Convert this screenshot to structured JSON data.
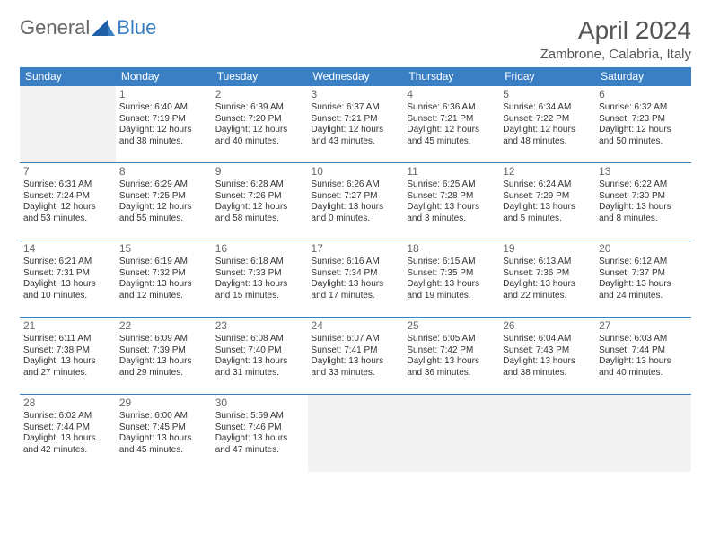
{
  "logo": {
    "text1": "General",
    "text2": "Blue"
  },
  "title": "April 2024",
  "location": "Zambrone, Calabria, Italy",
  "colors": {
    "header_bg": "#3a7fc4",
    "header_text": "#ffffff",
    "border": "#3a7fc4",
    "empty_bg": "#f3f3f3",
    "text": "#333333",
    "title_text": "#555555"
  },
  "weekdays": [
    "Sunday",
    "Monday",
    "Tuesday",
    "Wednesday",
    "Thursday",
    "Friday",
    "Saturday"
  ],
  "weeks": [
    [
      null,
      {
        "n": "1",
        "sr": "6:40 AM",
        "ss": "7:19 PM",
        "dl": "12 hours and 38 minutes."
      },
      {
        "n": "2",
        "sr": "6:39 AM",
        "ss": "7:20 PM",
        "dl": "12 hours and 40 minutes."
      },
      {
        "n": "3",
        "sr": "6:37 AM",
        "ss": "7:21 PM",
        "dl": "12 hours and 43 minutes."
      },
      {
        "n": "4",
        "sr": "6:36 AM",
        "ss": "7:21 PM",
        "dl": "12 hours and 45 minutes."
      },
      {
        "n": "5",
        "sr": "6:34 AM",
        "ss": "7:22 PM",
        "dl": "12 hours and 48 minutes."
      },
      {
        "n": "6",
        "sr": "6:32 AM",
        "ss": "7:23 PM",
        "dl": "12 hours and 50 minutes."
      }
    ],
    [
      {
        "n": "7",
        "sr": "6:31 AM",
        "ss": "7:24 PM",
        "dl": "12 hours and 53 minutes."
      },
      {
        "n": "8",
        "sr": "6:29 AM",
        "ss": "7:25 PM",
        "dl": "12 hours and 55 minutes."
      },
      {
        "n": "9",
        "sr": "6:28 AM",
        "ss": "7:26 PM",
        "dl": "12 hours and 58 minutes."
      },
      {
        "n": "10",
        "sr": "6:26 AM",
        "ss": "7:27 PM",
        "dl": "13 hours and 0 minutes."
      },
      {
        "n": "11",
        "sr": "6:25 AM",
        "ss": "7:28 PM",
        "dl": "13 hours and 3 minutes."
      },
      {
        "n": "12",
        "sr": "6:24 AM",
        "ss": "7:29 PM",
        "dl": "13 hours and 5 minutes."
      },
      {
        "n": "13",
        "sr": "6:22 AM",
        "ss": "7:30 PM",
        "dl": "13 hours and 8 minutes."
      }
    ],
    [
      {
        "n": "14",
        "sr": "6:21 AM",
        "ss": "7:31 PM",
        "dl": "13 hours and 10 minutes."
      },
      {
        "n": "15",
        "sr": "6:19 AM",
        "ss": "7:32 PM",
        "dl": "13 hours and 12 minutes."
      },
      {
        "n": "16",
        "sr": "6:18 AM",
        "ss": "7:33 PM",
        "dl": "13 hours and 15 minutes."
      },
      {
        "n": "17",
        "sr": "6:16 AM",
        "ss": "7:34 PM",
        "dl": "13 hours and 17 minutes."
      },
      {
        "n": "18",
        "sr": "6:15 AM",
        "ss": "7:35 PM",
        "dl": "13 hours and 19 minutes."
      },
      {
        "n": "19",
        "sr": "6:13 AM",
        "ss": "7:36 PM",
        "dl": "13 hours and 22 minutes."
      },
      {
        "n": "20",
        "sr": "6:12 AM",
        "ss": "7:37 PM",
        "dl": "13 hours and 24 minutes."
      }
    ],
    [
      {
        "n": "21",
        "sr": "6:11 AM",
        "ss": "7:38 PM",
        "dl": "13 hours and 27 minutes."
      },
      {
        "n": "22",
        "sr": "6:09 AM",
        "ss": "7:39 PM",
        "dl": "13 hours and 29 minutes."
      },
      {
        "n": "23",
        "sr": "6:08 AM",
        "ss": "7:40 PM",
        "dl": "13 hours and 31 minutes."
      },
      {
        "n": "24",
        "sr": "6:07 AM",
        "ss": "7:41 PM",
        "dl": "13 hours and 33 minutes."
      },
      {
        "n": "25",
        "sr": "6:05 AM",
        "ss": "7:42 PM",
        "dl": "13 hours and 36 minutes."
      },
      {
        "n": "26",
        "sr": "6:04 AM",
        "ss": "7:43 PM",
        "dl": "13 hours and 38 minutes."
      },
      {
        "n": "27",
        "sr": "6:03 AM",
        "ss": "7:44 PM",
        "dl": "13 hours and 40 minutes."
      }
    ],
    [
      {
        "n": "28",
        "sr": "6:02 AM",
        "ss": "7:44 PM",
        "dl": "13 hours and 42 minutes."
      },
      {
        "n": "29",
        "sr": "6:00 AM",
        "ss": "7:45 PM",
        "dl": "13 hours and 45 minutes."
      },
      {
        "n": "30",
        "sr": "5:59 AM",
        "ss": "7:46 PM",
        "dl": "13 hours and 47 minutes."
      },
      null,
      null,
      null,
      null
    ]
  ],
  "labels": {
    "sunrise": "Sunrise:",
    "sunset": "Sunset:",
    "daylight": "Daylight:"
  }
}
